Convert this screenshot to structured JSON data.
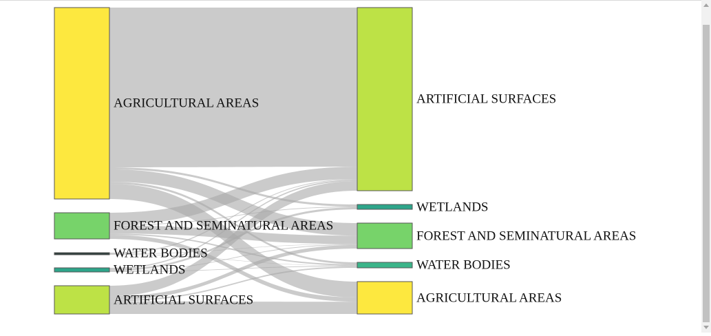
{
  "chart_data": {
    "type": "sankey",
    "source_nodes": [
      {
        "name": "AGRICULTURAL AREAS",
        "color": "#fde83f"
      },
      {
        "name": "FOREST AND SEMINATURAL AREAS",
        "color": "#77d36a"
      },
      {
        "name": "WATER BODIES",
        "color": "#2d3e3a"
      },
      {
        "name": "WETLANDS",
        "color": "#2ea58a"
      },
      {
        "name": "ARTIFICIAL SURFACES",
        "color": "#bde246"
      }
    ],
    "target_nodes": [
      {
        "name": "ARTIFICIAL SURFACES",
        "color": "#bde246"
      },
      {
        "name": "WETLANDS",
        "color": "#2ea58a"
      },
      {
        "name": "FOREST AND SEMINATURAL AREAS",
        "color": "#77d36a"
      },
      {
        "name": "WATER BODIES",
        "color": "#3cb58a"
      },
      {
        "name": "AGRICULTURAL AREAS",
        "color": "#fde83f"
      }
    ],
    "flows": [
      {
        "source": 0,
        "target": 0,
        "value": 232
      },
      {
        "source": 0,
        "target": 1,
        "value": 3
      },
      {
        "source": 0,
        "target": 2,
        "value": 18
      },
      {
        "source": 0,
        "target": 3,
        "value": 3
      },
      {
        "source": 0,
        "target": 4,
        "value": 22
      },
      {
        "source": 1,
        "target": 0,
        "value": 18
      },
      {
        "source": 1,
        "target": 1,
        "value": 1
      },
      {
        "source": 1,
        "target": 2,
        "value": 12
      },
      {
        "source": 1,
        "target": 3,
        "value": 2
      },
      {
        "source": 1,
        "target": 4,
        "value": 6
      },
      {
        "source": 2,
        "target": 0,
        "value": 1
      },
      {
        "source": 2,
        "target": 2,
        "value": 0.5
      },
      {
        "source": 2,
        "target": 3,
        "value": 0.5
      },
      {
        "source": 3,
        "target": 0,
        "value": 2
      },
      {
        "source": 3,
        "target": 1,
        "value": 3
      },
      {
        "source": 3,
        "target": 2,
        "value": 1
      },
      {
        "source": 3,
        "target": 3,
        "value": 1
      },
      {
        "source": 4,
        "target": 0,
        "value": 14
      },
      {
        "source": 4,
        "target": 2,
        "value": 5
      },
      {
        "source": 4,
        "target": 3,
        "value": 2
      },
      {
        "source": 4,
        "target": 4,
        "value": 17
      }
    ],
    "link_color": "#a8a8a8",
    "node_border_color": "#555555"
  }
}
